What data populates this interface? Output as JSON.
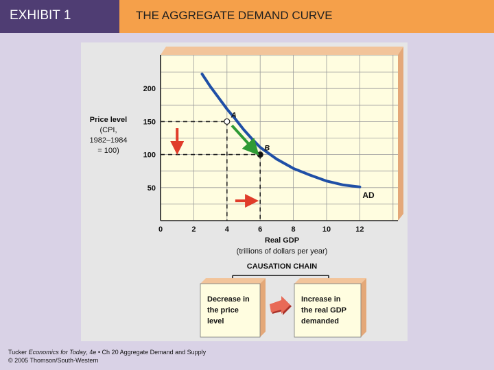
{
  "header": {
    "exhibit_label": "EXHIBIT 1",
    "title": "THE AGGREGATE DEMAND CURVE"
  },
  "colors": {
    "header_left_bg": "#4f3d73",
    "header_right_bg": "#f5a04a",
    "page_bg": "#d9d2e6",
    "plot_bg": "#fffde0",
    "curve": "#1f4fa6",
    "green_arrow": "#2f9a35",
    "red_arrow": "#e03c2a"
  },
  "chart_data": {
    "type": "line",
    "title": "",
    "xlabel": "Real GDP",
    "xlabel_sub": "(trillions of dollars per year)",
    "ylabel": [
      "Price level",
      "(CPI,",
      "1982–1984",
      "= 100)"
    ],
    "xlim": [
      0,
      14
    ],
    "ylim": [
      0,
      250
    ],
    "xticks": [
      0,
      2,
      4,
      6,
      8,
      10,
      12
    ],
    "yticks": [
      50,
      100,
      150,
      200
    ],
    "grid": true,
    "series": [
      {
        "name": "AD",
        "x": [
          2.5,
          3,
          3.5,
          4,
          4.5,
          5,
          5.5,
          6,
          7,
          8,
          9,
          10,
          11,
          12
        ],
        "y": [
          222,
          203,
          186,
          169,
          154,
          138,
          124,
          111,
          93,
          79,
          69,
          60,
          54,
          51
        ]
      }
    ],
    "points": [
      {
        "label": "A",
        "x": 4,
        "y": 150,
        "style": "open"
      },
      {
        "label": "B",
        "x": 6,
        "y": 100,
        "style": "filled"
      }
    ],
    "annotations": [
      {
        "kind": "arrow",
        "color": "green",
        "from": [
          4.3,
          144
        ],
        "to": [
          5.6,
          108
        ]
      },
      {
        "kind": "arrow",
        "color": "red",
        "direction": "down",
        "x": 1,
        "from_y": 140,
        "to_y": 110
      },
      {
        "kind": "arrow",
        "color": "red",
        "direction": "right",
        "y": 30,
        "from_x": 4.5,
        "to_x": 5.5
      }
    ]
  },
  "causation": {
    "title": "CAUSATION CHAIN",
    "box1": [
      "Decrease in",
      "the price",
      "level"
    ],
    "box2": [
      "Increase in",
      "the real GDP",
      "demanded"
    ]
  },
  "footer": {
    "line1_prefix": "Tucker ",
    "line1_italic": "Economics for Today",
    "line1_suffix": ", 4e • Ch 20 Aggregate Demand and Supply",
    "line2": "© 2005 Thomson/South-Western"
  }
}
